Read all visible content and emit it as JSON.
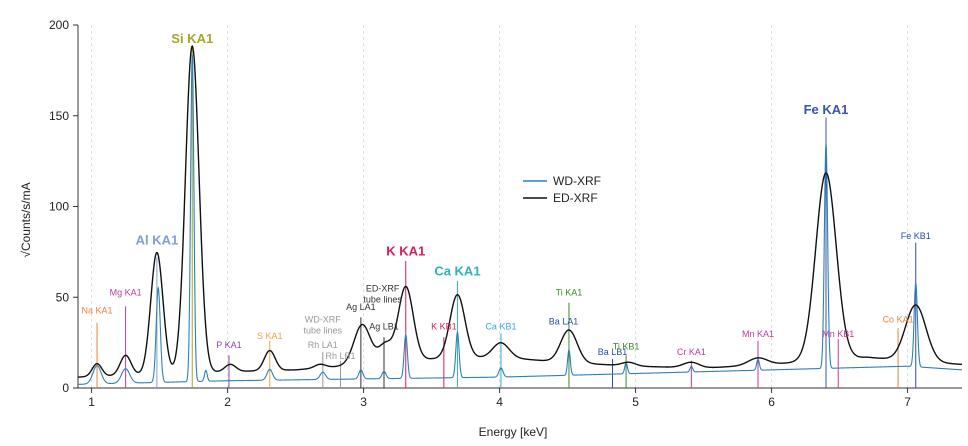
{
  "chart_data": {
    "type": "line",
    "xlabel": "Energy [keV]",
    "ylabel": "√Counts/s/mA",
    "xlim": [
      0.9,
      7.4
    ],
    "ylim": [
      0,
      200
    ],
    "x_ticks": [
      1,
      2,
      3,
      4,
      5,
      6,
      7
    ],
    "y_ticks": [
      0,
      50,
      100,
      150,
      200
    ],
    "grid": "vertical dashed",
    "legend": {
      "placement": "center-top",
      "entries": [
        {
          "name": "WD-XRF",
          "color": "#2f7fb8"
        },
        {
          "name": "ED-XRF",
          "color": "#111111"
        }
      ]
    },
    "series": [
      {
        "name": "WD-XRF",
        "color": "#2f7fb8",
        "baseline": [
          [
            0.9,
            2
          ],
          [
            2.0,
            4
          ],
          [
            3.0,
            5
          ],
          [
            4.0,
            6
          ],
          [
            5.0,
            8
          ],
          [
            6.0,
            10
          ],
          [
            7.0,
            12
          ],
          [
            7.4,
            10
          ]
        ],
        "peaks": [
          {
            "x": 1.04,
            "h": 10,
            "w": 0.03
          },
          {
            "x": 1.25,
            "h": 8,
            "w": 0.03
          },
          {
            "x": 1.49,
            "h": 52,
            "w": 0.015
          },
          {
            "x": 1.74,
            "h": 180,
            "w": 0.012
          },
          {
            "x": 1.84,
            "h": 6,
            "w": 0.01
          },
          {
            "x": 2.31,
            "h": 6,
            "w": 0.02
          },
          {
            "x": 2.7,
            "h": 4,
            "w": 0.02
          },
          {
            "x": 2.98,
            "h": 5,
            "w": 0.015
          },
          {
            "x": 3.15,
            "h": 4,
            "w": 0.015
          },
          {
            "x": 3.31,
            "h": 24,
            "w": 0.012
          },
          {
            "x": 3.69,
            "h": 25,
            "w": 0.012
          },
          {
            "x": 4.01,
            "h": 5,
            "w": 0.015
          },
          {
            "x": 4.51,
            "h": 14,
            "w": 0.01
          },
          {
            "x": 4.93,
            "h": 6,
            "w": 0.01
          },
          {
            "x": 5.41,
            "h": 3,
            "w": 0.01
          },
          {
            "x": 5.9,
            "h": 6,
            "w": 0.01
          },
          {
            "x": 6.4,
            "h": 124,
            "w": 0.012
          },
          {
            "x": 7.06,
            "h": 46,
            "w": 0.012
          }
        ]
      },
      {
        "name": "ED-XRF",
        "color": "#111111",
        "baseline": [
          [
            0.9,
            6
          ],
          [
            1.6,
            8
          ],
          [
            2.0,
            9
          ],
          [
            2.5,
            10
          ],
          [
            3.0,
            13
          ],
          [
            3.5,
            16
          ],
          [
            4.0,
            17
          ],
          [
            4.5,
            14
          ],
          [
            5.0,
            12
          ],
          [
            5.5,
            11
          ],
          [
            6.0,
            13
          ],
          [
            6.3,
            15
          ],
          [
            6.7,
            17
          ],
          [
            7.0,
            15
          ],
          [
            7.4,
            13
          ]
        ],
        "peaks": [
          {
            "x": 1.04,
            "h": 7,
            "w": 0.035
          },
          {
            "x": 1.25,
            "h": 11,
            "w": 0.04
          },
          {
            "x": 1.48,
            "h": 67,
            "w": 0.045
          },
          {
            "x": 1.74,
            "h": 180,
            "w": 0.05
          },
          {
            "x": 2.02,
            "h": 4,
            "w": 0.04
          },
          {
            "x": 2.31,
            "h": 11,
            "w": 0.04
          },
          {
            "x": 2.68,
            "h": 2,
            "w": 0.04
          },
          {
            "x": 2.99,
            "h": 22,
            "w": 0.06
          },
          {
            "x": 3.16,
            "h": 10,
            "w": 0.05
          },
          {
            "x": 3.31,
            "h": 41,
            "w": 0.055
          },
          {
            "x": 3.69,
            "h": 35,
            "w": 0.055
          },
          {
            "x": 4.01,
            "h": 8,
            "w": 0.06
          },
          {
            "x": 4.51,
            "h": 18,
            "w": 0.06
          },
          {
            "x": 4.95,
            "h": 2,
            "w": 0.05
          },
          {
            "x": 5.41,
            "h": 3,
            "w": 0.06
          },
          {
            "x": 5.9,
            "h": 4,
            "w": 0.07
          },
          {
            "x": 6.4,
            "h": 103,
            "w": 0.075
          },
          {
            "x": 7.06,
            "h": 31,
            "w": 0.075
          }
        ]
      }
    ],
    "annotations": [
      {
        "text": "Na KA1",
        "x": 1.04,
        "line_top": 36,
        "label_y": 40,
        "color": "#e8843a",
        "size": 9,
        "bold": false
      },
      {
        "text": "Mg KA1",
        "x": 1.25,
        "line_top": 45,
        "label_y": 50,
        "color": "#c03a9a",
        "size": 9,
        "bold": false
      },
      {
        "text": "Al KA1",
        "x": 1.48,
        "line_top": 72,
        "label_y": 78,
        "color": "#7f9fd4",
        "size": 13,
        "bold": true
      },
      {
        "text": "Si KA1",
        "x": 1.74,
        "line_top": 188,
        "label_y": 189,
        "color": "#a6a62a",
        "size": 13,
        "bold": true
      },
      {
        "text": "P KA1",
        "x": 2.01,
        "line_top": 18,
        "label_y": 21,
        "color": "#8e3fb0",
        "size": 9,
        "bold": false
      },
      {
        "text": "S KA1",
        "x": 2.31,
        "line_top": 26,
        "label_y": 26,
        "color": "#e8a640",
        "size": 9,
        "bold": false
      },
      {
        "text": "WD-XRF",
        "x": 2.7,
        "line_top": 0,
        "label_y": 35,
        "color": "#999999",
        "size": 9,
        "bold": false
      },
      {
        "text": "tube lines",
        "x": 2.7,
        "line_top": 0,
        "label_y": 29,
        "color": "#999999",
        "size": 9,
        "bold": false
      },
      {
        "text": "Rh LA1",
        "x": 2.7,
        "line_top": 20,
        "label_y": 21,
        "color": "#999999",
        "size": 9,
        "bold": false
      },
      {
        "text": "Rh LB1",
        "x": 2.83,
        "line_top": 15,
        "label_y": 15,
        "color": "#999999",
        "size": 9,
        "bold": false
      },
      {
        "text": "ED-XRF",
        "x": 3.14,
        "line_top": 0,
        "label_y": 52,
        "color": "#333333",
        "size": 9,
        "bold": false
      },
      {
        "text": "tube lines",
        "x": 3.14,
        "line_top": 0,
        "label_y": 46,
        "color": "#333333",
        "size": 9,
        "bold": false
      },
      {
        "text": "Ag LA1",
        "x": 2.98,
        "line_top": 39,
        "label_y": 42,
        "color": "#333333",
        "size": 9,
        "bold": false
      },
      {
        "text": "Ag LB1",
        "x": 3.15,
        "line_top": 28,
        "label_y": 31,
        "color": "#333333",
        "size": 9,
        "bold": false
      },
      {
        "text": "K KA1",
        "x": 3.31,
        "line_top": 70,
        "label_y": 72,
        "color": "#d81b5a",
        "size": 13,
        "bold": true
      },
      {
        "text": "K KB1",
        "x": 3.59,
        "line_top": 28,
        "label_y": 31,
        "color": "#d81b5a",
        "size": 9,
        "bold": false
      },
      {
        "text": "Ca KA1",
        "x": 3.69,
        "line_top": 59,
        "label_y": 61,
        "color": "#2eb4b4",
        "size": 13,
        "bold": true
      },
      {
        "text": "Ca KB1",
        "x": 4.01,
        "line_top": 30,
        "label_y": 31,
        "color": "#3aa6d8",
        "size": 9,
        "bold": false
      },
      {
        "text": "Ti KA1",
        "x": 4.51,
        "line_top": 47,
        "label_y": 50,
        "color": "#3a8a2a",
        "size": 9,
        "bold": false
      },
      {
        "text": "Ba LA1",
        "x": 4.47,
        "line_top": 0,
        "label_y": 34,
        "color": "#2a4fa0",
        "size": 9,
        "bold": false
      },
      {
        "text": "Ba LB1",
        "x": 4.83,
        "line_top": 16,
        "label_y": 17,
        "color": "#2a4fa0",
        "size": 9,
        "bold": false
      },
      {
        "text": "Ti KB1",
        "x": 4.93,
        "line_top": 18,
        "label_y": 20,
        "color": "#3a8a2a",
        "size": 9,
        "bold": false
      },
      {
        "text": "Cr KA1",
        "x": 5.41,
        "line_top": 15,
        "label_y": 17,
        "color": "#c03a9a",
        "size": 9,
        "bold": false
      },
      {
        "text": "Mn KA1",
        "x": 5.9,
        "line_top": 26,
        "label_y": 27,
        "color": "#c03a9a",
        "size": 9,
        "bold": false
      },
      {
        "text": "Fe KA1",
        "x": 6.4,
        "line_top": 149,
        "label_y": 150,
        "color": "#3a55a8",
        "size": 13,
        "bold": true
      },
      {
        "text": "Mn KB1",
        "x": 6.49,
        "line_top": 27,
        "label_y": 27,
        "color": "#c03a9a",
        "size": 9,
        "bold": false
      },
      {
        "text": "Co KA1",
        "x": 6.93,
        "line_top": 33,
        "label_y": 35,
        "color": "#e8843a",
        "size": 9,
        "bold": false
      },
      {
        "text": "Fe KB1",
        "x": 7.06,
        "line_top": 80,
        "label_y": 81,
        "color": "#2a4fa0",
        "size": 9,
        "bold": false
      }
    ]
  }
}
